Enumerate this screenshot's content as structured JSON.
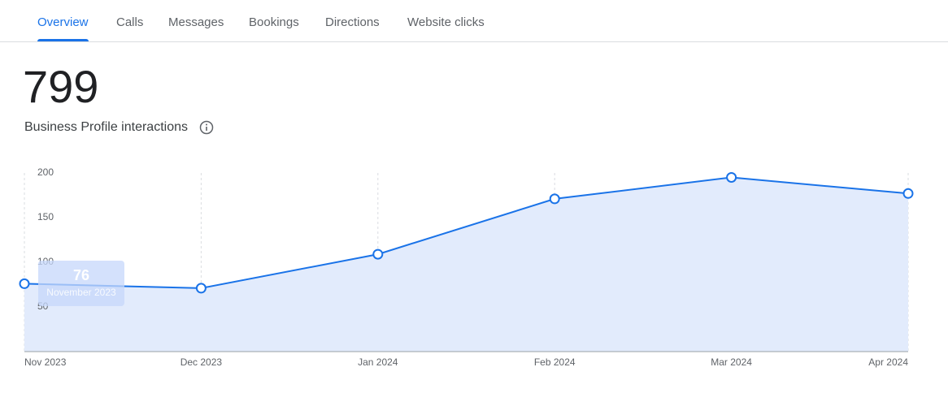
{
  "tabs": [
    "Overview",
    "Calls",
    "Messages",
    "Bookings",
    "Directions",
    "Website clicks"
  ],
  "active_tab": 0,
  "metric": {
    "value": "799",
    "label": "Business Profile interactions"
  },
  "chart_data": {
    "type": "line",
    "categories": [
      "Nov 2023",
      "Dec 2023",
      "Jan 2024",
      "Feb 2024",
      "Mar 2024",
      "Apr 2024"
    ],
    "values": [
      76,
      71,
      109,
      171,
      195,
      177
    ],
    "color": "#1a73e8",
    "area_color": "#e2ebfc",
    "ylim": [
      0,
      200
    ],
    "yticks": [
      50,
      100,
      150,
      200
    ],
    "tooltip": {
      "point": 0,
      "label": "November 2023"
    }
  }
}
